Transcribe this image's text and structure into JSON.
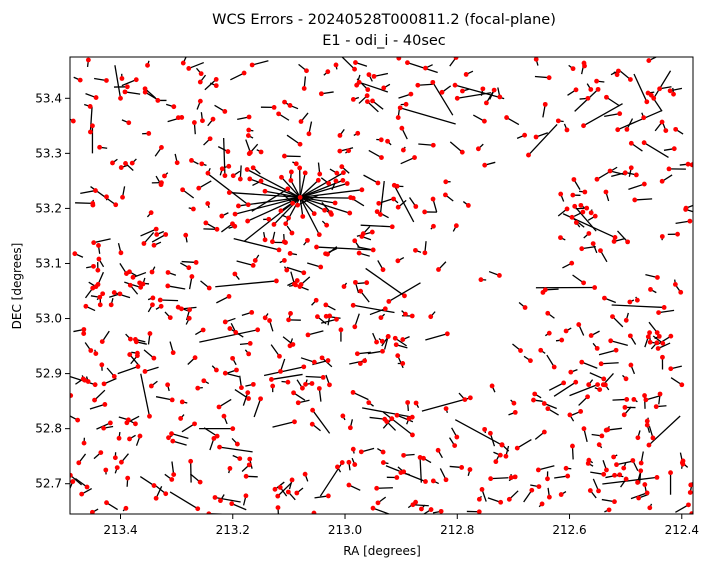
{
  "chart_data": {
    "type": "scatter",
    "title": "WCS Errors - 20240528T000811.2 (focal-plane)",
    "subtitle": "E1 - odi_i - 40sec",
    "xlabel": "RA [degrees]",
    "ylabel": "DEC [degrees]",
    "xlim": [
      213.49,
      212.38
    ],
    "ylim": [
      52.645,
      53.475
    ],
    "x_ticks": [
      "213.4",
      "213.2",
      "213.0",
      "212.8",
      "212.6",
      "212.4"
    ],
    "y_ticks": [
      "52.7",
      "52.8",
      "52.9",
      "53.0",
      "53.1",
      "53.2",
      "53.3",
      "53.4"
    ],
    "grid": false,
    "marker_color": "#ff0000",
    "vector_color": "#000000",
    "star_count_estimate": 700,
    "radial_pattern_center": {
      "ra": 213.08,
      "dec": 53.22
    },
    "example_points": [
      {
        "ra": 213.45,
        "dec": 53.35,
        "dra": 0.0,
        "ddec": -0.05
      },
      {
        "ra": 213.4,
        "dec": 53.4,
        "dra": 0.01,
        "ddec": 0.06
      },
      {
        "ra": 213.08,
        "dec": 53.22,
        "dra": 0.1,
        "ddec": -0.08
      },
      {
        "ra": 212.8,
        "dec": 53.4,
        "dra": -0.06,
        "ddec": 0.01
      },
      {
        "ra": 212.55,
        "dec": 52.88,
        "dra": 0.05,
        "ddec": -0.02
      },
      {
        "ra": 212.45,
        "dec": 53.4,
        "dra": -0.03,
        "ddec": 0.05
      },
      {
        "ra": 213.2,
        "dec": 52.8,
        "dra": 0.06,
        "ddec": 0.0
      },
      {
        "ra": 212.42,
        "dec": 52.72,
        "dra": 0.0,
        "ddec": -0.04
      }
    ]
  }
}
